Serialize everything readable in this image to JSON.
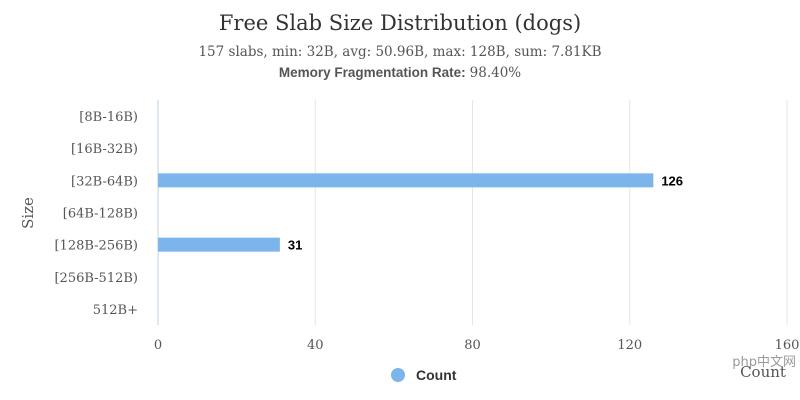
{
  "chart_data": {
    "type": "bar",
    "orientation": "horizontal",
    "title": "Free Slab Size Distribution (dogs)",
    "subtitle": "157 slabs, min: 32B, avg: 50.96B, max: 128B, sum: 7.81KB",
    "subtitle2_label": "Memory Fragmentation Rate:",
    "subtitle2_value": "98.40%",
    "xlabel": "Count",
    "ylabel": "Size",
    "categories": [
      "[8B-16B)",
      "[16B-32B)",
      "[32B-64B)",
      "[64B-128B)",
      "[128B-256B)",
      "[256B-512B)",
      "512B+"
    ],
    "series": [
      {
        "name": "Count",
        "values": [
          0,
          0,
          126,
          0,
          31,
          0,
          0
        ]
      }
    ],
    "data_labels": [
      "",
      "",
      "126",
      "",
      "31",
      "",
      ""
    ],
    "xlim": [
      0,
      160
    ],
    "xticks": [
      0,
      40,
      80,
      120,
      160
    ],
    "grid": true,
    "legend_position": "bottom",
    "bar_color": "#7cb5ec"
  },
  "watermark": "php中文网"
}
